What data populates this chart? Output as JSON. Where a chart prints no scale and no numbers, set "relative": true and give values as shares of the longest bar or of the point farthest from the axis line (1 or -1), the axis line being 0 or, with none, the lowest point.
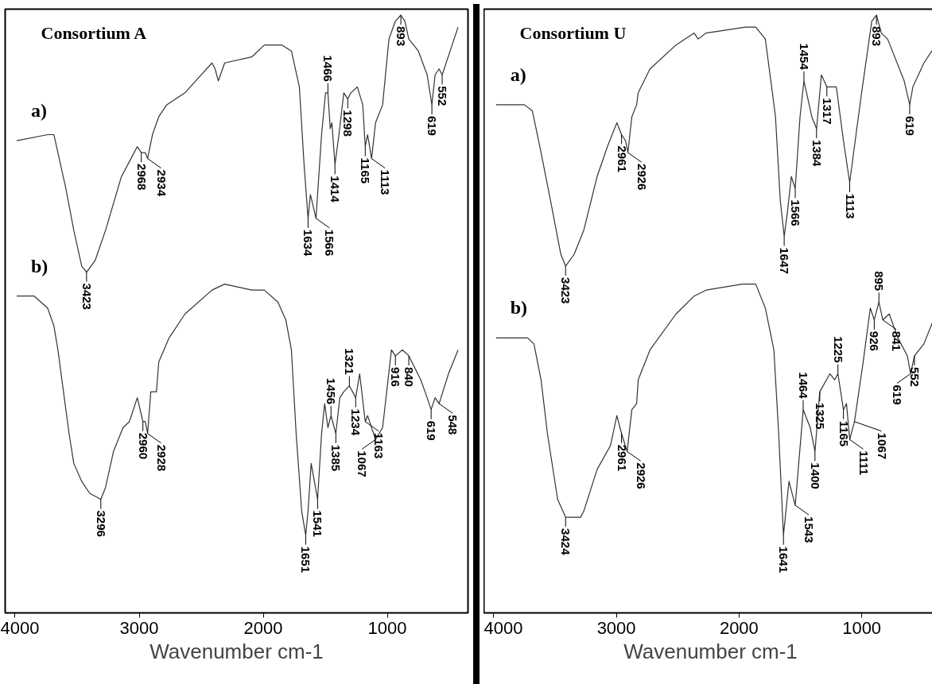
{
  "chart_data": [
    {
      "type": "line",
      "title": "Consortium A",
      "xlabel": "Wavenumber cm-1",
      "relative": true,
      "xlim": [
        4080,
        350
      ],
      "xticks": [
        4000,
        3000,
        2000,
        1000
      ],
      "series": [
        {
          "name": "a)",
          "color": "#333333",
          "x": [
            3987,
            3738,
            3687,
            3655,
            3591,
            3527,
            3463,
            3424,
            3354,
            3271,
            3143,
            3066,
            3015,
            2983,
            2951,
            2932,
            2893,
            2842,
            2778,
            2631,
            2413,
            2388,
            2362,
            2311,
            2093,
            1991,
            1850,
            1773,
            1709,
            1671,
            1639,
            1620,
            1575,
            1530,
            1498,
            1479,
            1460,
            1447,
            1422,
            1390,
            1351,
            1319,
            1294,
            1242,
            1198,
            1178,
            1159,
            1127,
            1095,
            1038,
            987,
            935,
            891,
            859,
            827,
            750,
            679,
            641,
            615,
            583,
            558,
            494,
            430
          ],
          "values": [
            0.79,
            0.8,
            0.8,
            0.77,
            0.71,
            0.64,
            0.58,
            0.57,
            0.59,
            0.64,
            0.73,
            0.76,
            0.78,
            0.77,
            0.77,
            0.76,
            0.8,
            0.83,
            0.85,
            0.87,
            0.92,
            0.91,
            0.89,
            0.92,
            0.93,
            0.95,
            0.95,
            0.94,
            0.88,
            0.75,
            0.66,
            0.7,
            0.66,
            0.8,
            0.87,
            0.87,
            0.81,
            0.82,
            0.75,
            0.8,
            0.87,
            0.86,
            0.87,
            0.88,
            0.85,
            0.78,
            0.8,
            0.76,
            0.82,
            0.85,
            0.96,
            0.99,
            1,
            0.99,
            0.96,
            0.94,
            0.9,
            0.85,
            0.9,
            0.91,
            0.9,
            0.94,
            0.98
          ]
        },
        {
          "name": "b)",
          "color": "#333333",
          "x": [
            3987,
            3846,
            3738,
            3687,
            3655,
            3610,
            3565,
            3527,
            3463,
            3399,
            3309,
            3271,
            3207,
            3130,
            3079,
            3015,
            2970,
            2951,
            2932,
            2906,
            2861,
            2842,
            2759,
            2631,
            2413,
            2311,
            2093,
            1991,
            1882,
            1818,
            1773,
            1735,
            1690,
            1658,
            1639,
            1614,
            1562,
            1530,
            1505,
            1479,
            1454,
            1415,
            1383,
            1351,
            1306,
            1255,
            1223,
            1178,
            1159,
            1095,
            1038,
            967,
            935,
            878,
            827,
            731,
            679,
            647,
            615,
            583,
            507,
            430
          ],
          "values": [
            0.53,
            0.53,
            0.51,
            0.48,
            0.44,
            0.37,
            0.3,
            0.25,
            0.22,
            0.2,
            0.19,
            0.21,
            0.27,
            0.31,
            0.32,
            0.36,
            0.32,
            0.32,
            0.3,
            0.37,
            0.37,
            0.42,
            0.46,
            0.5,
            0.54,
            0.55,
            0.54,
            0.54,
            0.52,
            0.49,
            0.44,
            0.3,
            0.17,
            0.13,
            0.17,
            0.25,
            0.19,
            0.3,
            0.35,
            0.31,
            0.33,
            0.3,
            0.36,
            0.37,
            0.38,
            0.36,
            0.4,
            0.32,
            0.33,
            0.29,
            0.31,
            0.44,
            0.43,
            0.44,
            0.43,
            0.39,
            0.36,
            0.34,
            0.36,
            0.35,
            0.4,
            0.44
          ]
        }
      ],
      "annotations": [
        {
          "text": "3423",
          "x": 3424,
          "y": 0.57
        },
        {
          "text": "2968",
          "x": 2983,
          "y": 0.77
        },
        {
          "text": "2934",
          "x": 2932,
          "y": 0.76
        },
        {
          "text": "1634",
          "x": 1639,
          "y": 0.66
        },
        {
          "text": "1566",
          "x": 1575,
          "y": 0.66
        },
        {
          "text": "1414",
          "x": 1422,
          "y": 0.75
        },
        {
          "text": "1298",
          "x": 1319,
          "y": 0.86
        },
        {
          "text": "1165",
          "x": 1178,
          "y": 0.78
        },
        {
          "text": "1113",
          "x": 1127,
          "y": 0.76
        },
        {
          "text": "1466",
          "x": 1479,
          "y": 0.87
        },
        {
          "text": "893",
          "x": 891,
          "y": 1
        },
        {
          "text": "619",
          "x": 641,
          "y": 0.85
        },
        {
          "text": "552",
          "x": 558,
          "y": 0.9
        },
        {
          "text": "3296",
          "x": 3309,
          "y": 0.19
        },
        {
          "text": "2960",
          "x": 2970,
          "y": 0.32
        },
        {
          "text": "2928",
          "x": 2932,
          "y": 0.3
        },
        {
          "text": "1651",
          "x": 1658,
          "y": 0.13
        },
        {
          "text": "1541",
          "x": 1562,
          "y": 0.19
        },
        {
          "text": "1385",
          "x": 1415,
          "y": 0.3
        },
        {
          "text": "1234",
          "x": 1255,
          "y": 0.36
        },
        {
          "text": "1163",
          "x": 1178,
          "y": 0.32
        },
        {
          "text": "1067",
          "x": 1095,
          "y": 0.29
        },
        {
          "text": "1456",
          "x": 1454,
          "y": 0.33
        },
        {
          "text": "1321",
          "x": 1306,
          "y": 0.38
        },
        {
          "text": "916",
          "x": 935,
          "y": 0.43
        },
        {
          "text": "840",
          "x": 827,
          "y": 0.43
        },
        {
          "text": "619",
          "x": 647,
          "y": 0.34
        },
        {
          "text": "548",
          "x": 583,
          "y": 0.35
        }
      ]
    },
    {
      "type": "line",
      "title": "Consortium U",
      "xlabel": "Wavenumber cm-1",
      "relative": true,
      "xlim": [
        4080,
        385
      ],
      "xticks": [
        4000,
        3000,
        2000,
        1000
      ],
      "series": [
        {
          "name": "a)",
          "color": "#333333",
          "x": [
            3981,
            3749,
            3685,
            3614,
            3537,
            3453,
            3414,
            3344,
            3266,
            3157,
            3073,
            2996,
            2958,
            2925,
            2906,
            2874,
            2835,
            2822,
            2726,
            2514,
            2366,
            2333,
            2269,
            1947,
            1864,
            1786,
            1728,
            1703,
            1664,
            1632,
            1606,
            1574,
            1542,
            1503,
            1471,
            1439,
            1407,
            1368,
            1329,
            1284,
            1207,
            1149,
            1098,
            1053,
            1001,
            918,
            880,
            840,
            789,
            654,
            609,
            583,
            493,
            396
          ],
          "values": [
            0.85,
            0.85,
            0.84,
            0.77,
            0.69,
            0.6,
            0.58,
            0.6,
            0.64,
            0.73,
            0.78,
            0.82,
            0.8,
            0.79,
            0.77,
            0.83,
            0.85,
            0.87,
            0.91,
            0.95,
            0.97,
            0.96,
            0.97,
            0.98,
            0.98,
            0.96,
            0.87,
            0.83,
            0.69,
            0.63,
            0.67,
            0.73,
            0.71,
            0.83,
            0.89,
            0.86,
            0.83,
            0.81,
            0.9,
            0.88,
            0.88,
            0.79,
            0.72,
            0.79,
            0.87,
            0.99,
            1,
            0.97,
            0.96,
            0.89,
            0.85,
            0.88,
            0.92,
            0.95
          ]
        },
        {
          "name": "b)",
          "color": "#333333",
          "x": [
            3981,
            3723,
            3672,
            3614,
            3562,
            3479,
            3414,
            3292,
            3266,
            3157,
            3048,
            2996,
            2958,
            2912,
            2874,
            2835,
            2822,
            2726,
            2514,
            2366,
            2269,
            1973,
            1864,
            1786,
            1716,
            1677,
            1638,
            1593,
            1542,
            1477,
            1420,
            1381,
            1342,
            1259,
            1220,
            1194,
            1149,
            1124,
            1098,
            1059,
            988,
            930,
            898,
            860,
            828,
            776,
            705,
            628,
            602,
            570,
            493,
            396
          ],
          "values": [
            0.46,
            0.46,
            0.45,
            0.39,
            0.3,
            0.19,
            0.16,
            0.16,
            0.17,
            0.24,
            0.28,
            0.33,
            0.3,
            0.27,
            0.34,
            0.35,
            0.39,
            0.44,
            0.5,
            0.53,
            0.54,
            0.55,
            0.55,
            0.51,
            0.44,
            0.3,
            0.13,
            0.22,
            0.18,
            0.34,
            0.31,
            0.27,
            0.37,
            0.4,
            0.39,
            0.4,
            0.34,
            0.35,
            0.29,
            0.32,
            0.42,
            0.51,
            0.49,
            0.52,
            0.49,
            0.5,
            0.46,
            0.43,
            0.4,
            0.43,
            0.45,
            0.5
          ]
        }
      ],
      "annotations": [
        {
          "text": "3423",
          "x": 3414,
          "y": 0.58
        },
        {
          "text": "2961",
          "x": 2958,
          "y": 0.8
        },
        {
          "text": "2926",
          "x": 2906,
          "y": 0.77
        },
        {
          "text": "1647",
          "x": 1632,
          "y": 0.63
        },
        {
          "text": "1566",
          "x": 1542,
          "y": 0.71
        },
        {
          "text": "1384",
          "x": 1368,
          "y": 0.81
        },
        {
          "text": "1317",
          "x": 1284,
          "y": 0.88
        },
        {
          "text": "1113",
          "x": 1098,
          "y": 0.72
        },
        {
          "text": "1454",
          "x": 1471,
          "y": 0.89
        },
        {
          "text": "893",
          "x": 880,
          "y": 1
        },
        {
          "text": "619",
          "x": 609,
          "y": 0.85
        },
        {
          "text": "3424",
          "x": 3414,
          "y": 0.16
        },
        {
          "text": "2961",
          "x": 2958,
          "y": 0.3
        },
        {
          "text": "2926",
          "x": 2912,
          "y": 0.27
        },
        {
          "text": "1641",
          "x": 1638,
          "y": 0.13
        },
        {
          "text": "1543",
          "x": 1542,
          "y": 0.18
        },
        {
          "text": "1400",
          "x": 1381,
          "y": 0.27
        },
        {
          "text": "1325",
          "x": 1342,
          "y": 0.37
        },
        {
          "text": "1165",
          "x": 1149,
          "y": 0.34
        },
        {
          "text": "1111",
          "x": 1098,
          "y": 0.29
        },
        {
          "text": "1067",
          "x": 1059,
          "y": 0.32
        },
        {
          "text": "1464",
          "x": 1477,
          "y": 0.34
        },
        {
          "text": "1225",
          "x": 1194,
          "y": 0.4
        },
        {
          "text": "895",
          "x": 860,
          "y": 0.52
        },
        {
          "text": "926",
          "x": 898,
          "y": 0.49
        },
        {
          "text": "841",
          "x": 828,
          "y": 0.49
        },
        {
          "text": "552",
          "x": 570,
          "y": 0.43
        },
        {
          "text": "619",
          "x": 602,
          "y": 0.4
        }
      ]
    }
  ]
}
